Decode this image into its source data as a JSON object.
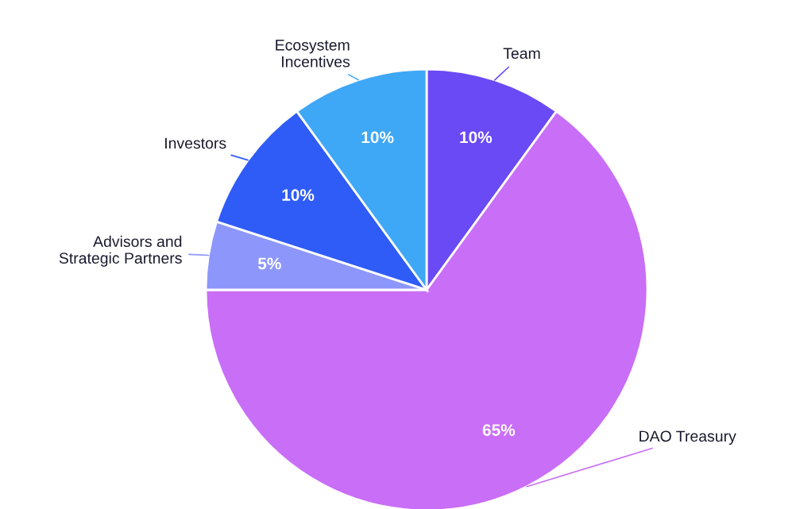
{
  "chart_data": {
    "type": "pie",
    "categories": [
      "Team",
      "DAO Treasury",
      "Advisors and\nStrategic Partners",
      "Investors",
      "Ecosystem\nIncentives"
    ],
    "values": [
      10,
      65,
      5,
      10,
      10
    ],
    "value_labels": [
      "10%",
      "65%",
      "5%",
      "10%",
      "10%"
    ],
    "colors": [
      "#6a4af5",
      "#c96ef6",
      "#8d97fb",
      "#2f5cf6",
      "#3fa8f6"
    ],
    "legend": false
  }
}
